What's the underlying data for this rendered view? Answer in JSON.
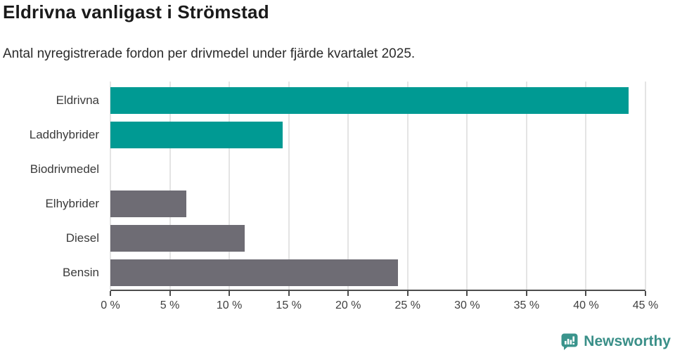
{
  "header": {
    "title": "Eldrivna vanligast i Strömstad",
    "subtitle": "Antal nyregistrerade fordon per drivmedel under fjärde kvartalet 2025."
  },
  "chart_data": {
    "type": "bar",
    "orientation": "horizontal",
    "title": "Eldrivna vanligast i Strömstad",
    "subtitle": "Antal nyregistrerade fordon per drivmedel under fjärde kvartalet 2025.",
    "categories": [
      "Eldrivna",
      "Laddhybrider",
      "Biodrivmedel",
      "Elhybrider",
      "Diesel",
      "Bensin"
    ],
    "values": [
      43.6,
      14.5,
      0,
      6.4,
      11.3,
      24.2
    ],
    "unit": "%",
    "bar_colors": [
      "#009a93",
      "#009a93",
      "#009a93",
      "#6e6c74",
      "#6e6c74",
      "#6e6c74"
    ],
    "xlabel": "",
    "ylabel": "",
    "xlim": [
      0,
      45
    ],
    "x_ticks": [
      0,
      5,
      10,
      15,
      20,
      25,
      30,
      35,
      40,
      45
    ],
    "x_tick_labels": [
      "0 %",
      "5 %",
      "10 %",
      "15 %",
      "20 %",
      "25 %",
      "30 %",
      "35 %",
      "40 %",
      "45 %"
    ],
    "grid": "vertical-on",
    "legend": "none"
  },
  "colors": {
    "teal_bar": "#009a93",
    "gray_bar": "#6e6c74",
    "gridline": "#e4e4e4",
    "axis": "#4c4c4c",
    "title_text": "#1a1a1a",
    "logo_teal": "#3a948c"
  },
  "footer": {
    "brand": "Newsworthy"
  }
}
